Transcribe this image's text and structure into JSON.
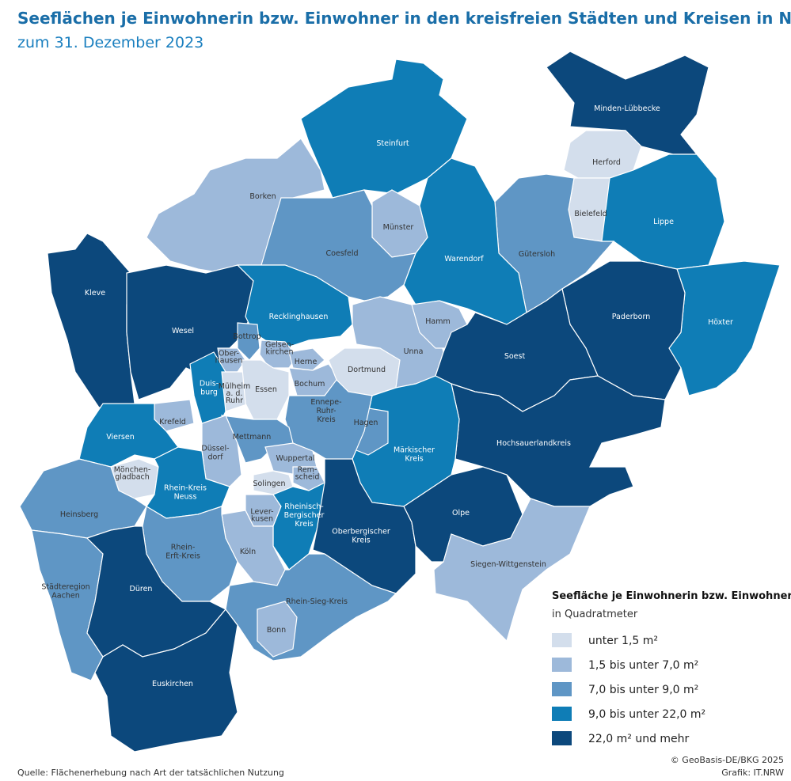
{
  "header": {
    "title": "Seeflächen je Einwohnerin bzw. Einwohner in den kreisfreien Städten und Kreisen in NRW",
    "subtitle": "zum 31. Dezember 2023"
  },
  "legend": {
    "title": "Seefläche je Einwohnerin bzw. Einwohner",
    "unit": "in Quadratmeter",
    "classes": [
      {
        "label": "unter 1,5 m²",
        "color": "#d3deec"
      },
      {
        "label": "1,5 bis unter 7,0 m²",
        "color": "#9db9da"
      },
      {
        "label": "7,0 bis unter 9,0 m²",
        "color": "#5f96c5"
      },
      {
        "label": "9,0 bis unter 22,0 m²",
        "color": "#0f7db6"
      },
      {
        "label": "22,0 m² und mehr",
        "color": "#0c487c"
      }
    ]
  },
  "regions": [
    {
      "label": [
        "Minden-Lübbecke"
      ],
      "class": 4
    },
    {
      "label": [
        "Herford"
      ],
      "class": 0
    },
    {
      "label": [
        "Bielefeld"
      ],
      "class": 0
    },
    {
      "label": [
        "Lippe"
      ],
      "class": 3
    },
    {
      "label": [
        "Höxter"
      ],
      "class": 3
    },
    {
      "label": [
        "Paderborn"
      ],
      "class": 4
    },
    {
      "label": [
        "Gütersloh"
      ],
      "class": 2
    },
    {
      "label": [
        "Steinfurt"
      ],
      "class": 3
    },
    {
      "label": [
        "Münster"
      ],
      "class": 1
    },
    {
      "label": [
        "Warendorf"
      ],
      "class": 3
    },
    {
      "label": [
        "Borken"
      ],
      "class": 1
    },
    {
      "label": [
        "Coesfeld"
      ],
      "class": 2
    },
    {
      "label": [
        "Kleve"
      ],
      "class": 4
    },
    {
      "label": [
        "Wesel"
      ],
      "class": 4
    },
    {
      "label": [
        "Recklinghausen"
      ],
      "class": 3
    },
    {
      "label": [
        "Bottrop"
      ],
      "class": 2
    },
    {
      "label": [
        "Gelsen-",
        "kirchen"
      ],
      "class": 1
    },
    {
      "label": [
        "Ober-",
        "hausen"
      ],
      "class": 1
    },
    {
      "label": [
        "Herne"
      ],
      "class": 1
    },
    {
      "label": [
        "Duis-",
        "burg"
      ],
      "class": 3
    },
    {
      "label": [
        "Mülheim",
        "a. d.",
        "Ruhr"
      ],
      "class": 0
    },
    {
      "label": [
        "Essen"
      ],
      "class": 0
    },
    {
      "label": [
        "Bochum"
      ],
      "class": 1
    },
    {
      "label": [
        "Dortmund"
      ],
      "class": 0
    },
    {
      "label": [
        "Unna"
      ],
      "class": 1
    },
    {
      "label": [
        "Hamm"
      ],
      "class": 1
    },
    {
      "label": [
        "Soest"
      ],
      "class": 4
    },
    {
      "label": [
        "Hochsauerlandkreis"
      ],
      "class": 4
    },
    {
      "label": [
        "Märkischer",
        "Kreis"
      ],
      "class": 3
    },
    {
      "label": [
        "Hagen"
      ],
      "class": 2
    },
    {
      "label": [
        "Ennepe-",
        "Ruhr-",
        "Kreis"
      ],
      "class": 2
    },
    {
      "label": [
        "Krefeld"
      ],
      "class": 1
    },
    {
      "label": [
        "Viersen"
      ],
      "class": 3
    },
    {
      "label": [
        "Mettmann"
      ],
      "class": 2
    },
    {
      "label": [
        "Düssel-",
        "dorf"
      ],
      "class": 1
    },
    {
      "label": [
        "Wuppertal"
      ],
      "class": 1
    },
    {
      "label": [
        "Rem-",
        "scheid"
      ],
      "class": 1
    },
    {
      "label": [
        "Solingen"
      ],
      "class": 0
    },
    {
      "label": [
        "Mönchen-",
        "gladbach"
      ],
      "class": 0
    },
    {
      "label": [
        "Rhein-Kreis",
        "Neuss"
      ],
      "class": 3
    },
    {
      "label": [
        "Heinsberg"
      ],
      "class": 2
    },
    {
      "label": [
        "Lever-",
        "kusen"
      ],
      "class": 1
    },
    {
      "label": [
        "Rheinisch-",
        "Bergischer",
        "Kreis"
      ],
      "class": 3
    },
    {
      "label": [
        "Oberbergischer",
        "Kreis"
      ],
      "class": 4
    },
    {
      "label": [
        "Olpe"
      ],
      "class": 4
    },
    {
      "label": [
        "Siegen-Wittgenstein"
      ],
      "class": 1
    },
    {
      "label": [
        "Köln"
      ],
      "class": 1
    },
    {
      "label": [
        "Rhein-",
        "Erft-Kreis"
      ],
      "class": 2
    },
    {
      "label": [
        "Städteregion",
        "Aachen"
      ],
      "class": 2
    },
    {
      "label": [
        "Düren"
      ],
      "class": 4
    },
    {
      "label": [
        "Euskirchen"
      ],
      "class": 4
    },
    {
      "label": [
        "Rhein-Sieg-Kreis"
      ],
      "class": 2
    },
    {
      "label": [
        "Bonn"
      ],
      "class": 1
    }
  ],
  "footer": {
    "source": "Quelle: Flächenerhebung nach Art der tatsächlichen Nutzung",
    "copyright": "© GeoBasis-DE/BKG 2025",
    "credit": "Grafik: IT.NRW"
  }
}
